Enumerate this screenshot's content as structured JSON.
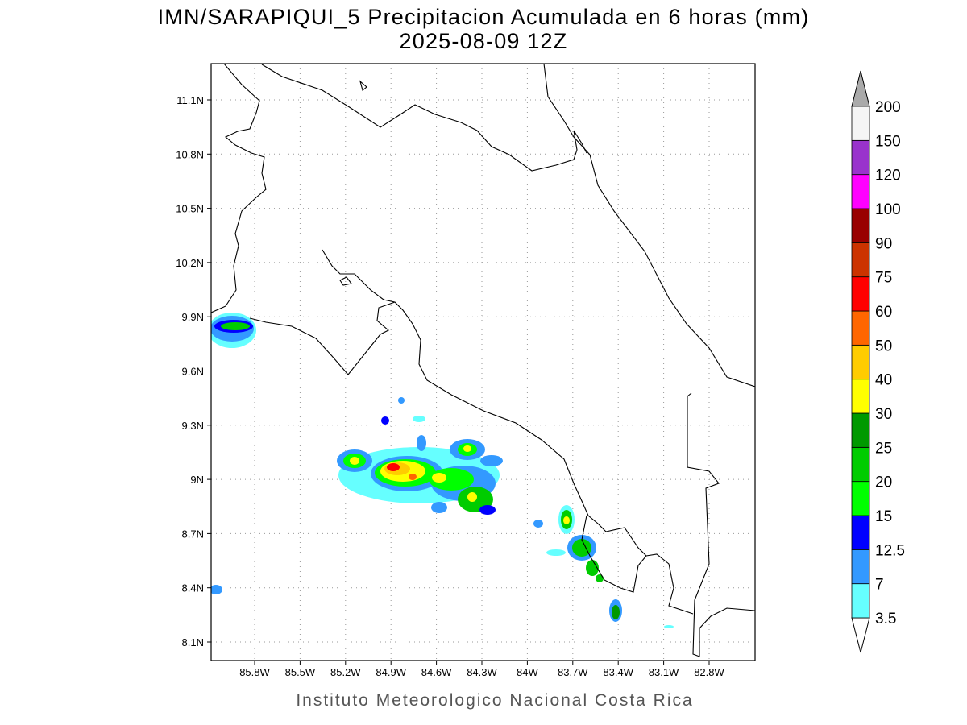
{
  "header": {
    "title": "IMN/SARAPIQUI_5 Precipitacion Acumulada en 6 horas (mm)",
    "subtitle": "2025-08-09 12Z"
  },
  "map": {
    "lat_labels": [
      "11.1N",
      "10.8N",
      "10.5N",
      "10.2N",
      "9.9N",
      "9.6N",
      "9.3N",
      "9N",
      "8.7N",
      "8.4N",
      "8.1N"
    ],
    "lon_labels": [
      "85.8W",
      "85.5W",
      "85.2W",
      "84.9W",
      "84.6W",
      "84.3W",
      "84W",
      "83.7W",
      "83.4W",
      "83.1W",
      "82.8W"
    ]
  },
  "legend": {
    "labels": [
      "3.5",
      "7",
      "12.5",
      "15",
      "20",
      "25",
      "30",
      "40",
      "50",
      "60",
      "75",
      "90",
      "100",
      "120",
      "150",
      "200"
    ],
    "colors": [
      "#66ffff",
      "#3399ff",
      "#0000ff",
      "#00ff00",
      "#00cc00",
      "#009900",
      "#ffff00",
      "#ffcc00",
      "#ff6600",
      "#ff0000",
      "#cc3300",
      "#990000",
      "#ff00ff",
      "#9933cc",
      "#f5f5f5"
    ],
    "under_color": "#ffffff",
    "over_color": "#aaaaaa"
  },
  "footer": "Instituto Meteorologico Nacional Costa Rica"
}
